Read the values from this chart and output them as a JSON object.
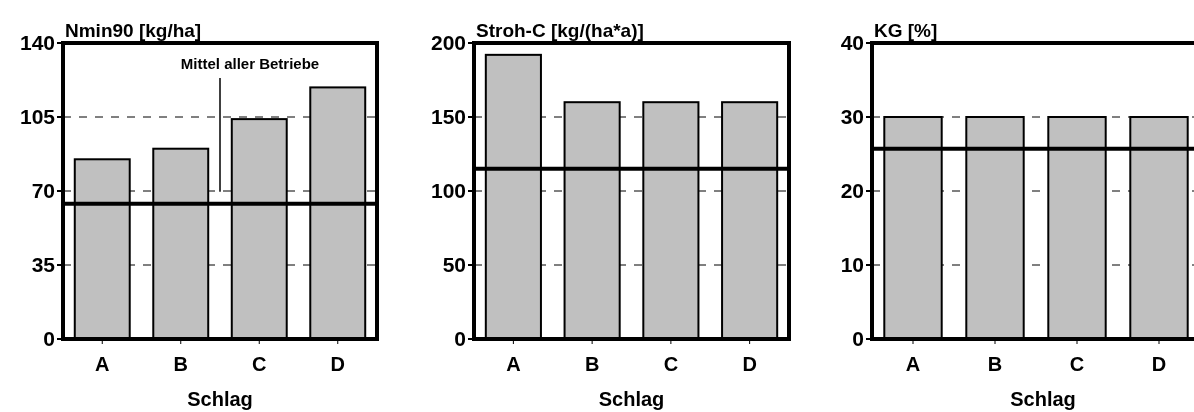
{
  "chart_data": [
    {
      "type": "bar",
      "title": "Nmin90 [kg/ha]",
      "xlabel": "Schlag",
      "categories": [
        "A",
        "B",
        "C",
        "D"
      ],
      "values": [
        85,
        90,
        104,
        119
      ],
      "color": "#c0c0c0",
      "ylim": [
        0,
        140
      ],
      "yticks": [
        0,
        35,
        70,
        105,
        140
      ],
      "grid": "y",
      "ref_lines": [
        {
          "axis": "y",
          "value": 64,
          "label": "Mittel aller Betriebe",
          "color": "#000000"
        }
      ]
    },
    {
      "type": "bar",
      "title": "Stroh-C [kg/(ha*a)]",
      "xlabel": "Schlag",
      "categories": [
        "A",
        "B",
        "C",
        "D"
      ],
      "values": [
        192,
        160,
        160,
        160
      ],
      "color": "#c0c0c0",
      "ylim": [
        0,
        200
      ],
      "yticks": [
        0,
        50,
        100,
        150,
        200
      ],
      "grid": "y",
      "ref_lines": [
        {
          "axis": "y",
          "value": 115,
          "color": "#000000"
        }
      ]
    },
    {
      "type": "bar",
      "title": "KG [%]",
      "xlabel": "Schlag",
      "categories": [
        "A",
        "B",
        "C",
        "D"
      ],
      "values": [
        30,
        30,
        30,
        30
      ],
      "color": "#c0c0c0",
      "ylim": [
        0,
        40
      ],
      "yticks": [
        0,
        10,
        20,
        30,
        40
      ],
      "grid": "y",
      "ref_lines": [
        {
          "axis": "y",
          "value": 25.7,
          "color": "#000000"
        }
      ]
    }
  ]
}
